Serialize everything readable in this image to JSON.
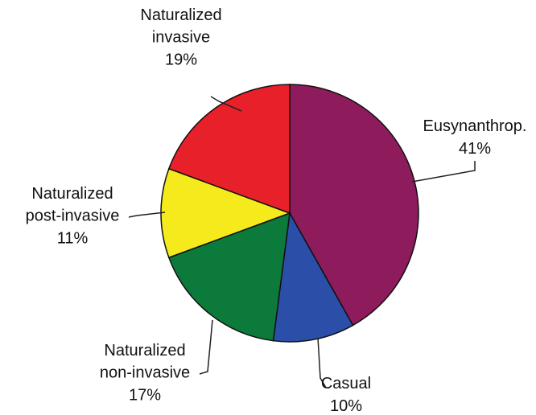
{
  "chart_data": {
    "type": "pie",
    "categories": [
      "Eusynanthrop.",
      "Casual",
      "Naturalized non-invasive",
      "Naturalized post-invasive",
      "Naturalized invasive"
    ],
    "values": [
      41,
      10,
      17,
      11,
      19
    ],
    "value_labels": [
      "41%",
      "10%",
      "17%",
      "11%",
      "19%"
    ],
    "colors": [
      "#8e1b5c",
      "#2b4fa8",
      "#0b7a3a",
      "#f4ea1c",
      "#e8202a"
    ]
  }
}
